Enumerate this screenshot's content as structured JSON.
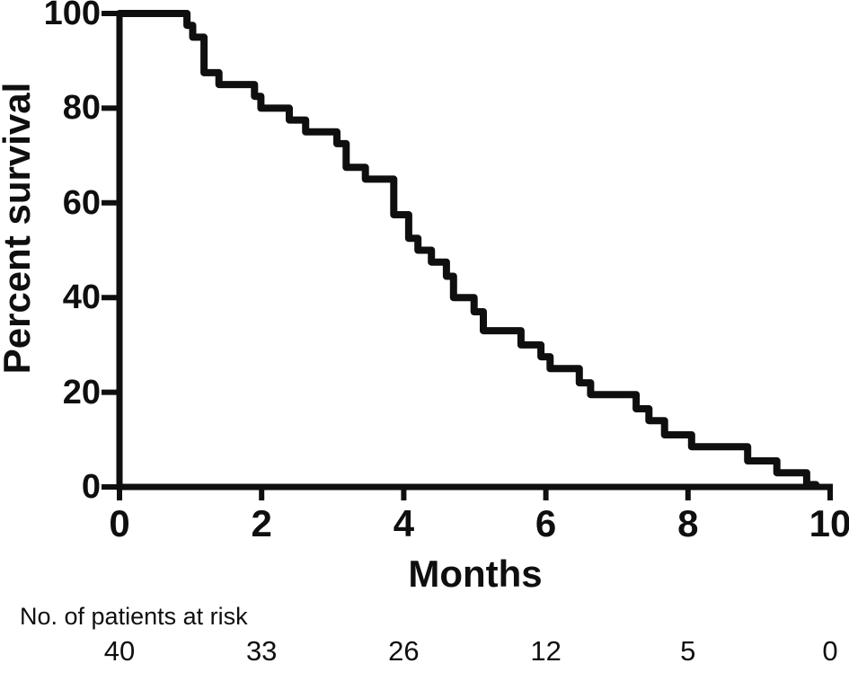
{
  "figure": {
    "background": "#ffffff",
    "ink_color": "#0f0f0f"
  },
  "chart_data": {
    "type": "line",
    "variant": "kaplan_meier_step_curve",
    "title": "",
    "xlabel": "Months",
    "ylabel": "Percent survival",
    "xlim": [
      0,
      10
    ],
    "ylim": [
      0,
      100
    ],
    "x_ticks": [
      0,
      2,
      4,
      6,
      8,
      10
    ],
    "y_ticks": [
      100,
      80,
      60,
      40,
      20,
      0
    ],
    "grid": false,
    "legend": "none",
    "series": [
      {
        "name": "Percent survival",
        "color": "#0f0f0f",
        "step_points": [
          [
            0,
            100
          ],
          [
            0.95,
            97.5
          ],
          [
            1.03,
            95
          ],
          [
            1.19,
            87.5
          ],
          [
            1.4,
            85
          ],
          [
            1.9,
            82.5
          ],
          [
            1.99,
            80
          ],
          [
            2.39,
            77.5
          ],
          [
            2.62,
            75
          ],
          [
            3.06,
            72.5
          ],
          [
            3.19,
            67.5
          ],
          [
            3.46,
            65
          ],
          [
            3.86,
            57.5
          ],
          [
            4.07,
            52.5
          ],
          [
            4.2,
            50
          ],
          [
            4.39,
            47.5
          ],
          [
            4.6,
            44.5
          ],
          [
            4.7,
            40
          ],
          [
            4.99,
            37
          ],
          [
            5.12,
            33
          ],
          [
            5.65,
            30
          ],
          [
            5.93,
            27.5
          ],
          [
            6.06,
            25
          ],
          [
            6.47,
            22
          ],
          [
            6.63,
            19.5
          ],
          [
            7.27,
            16.5
          ],
          [
            7.45,
            14
          ],
          [
            7.67,
            11
          ],
          [
            8.05,
            8.5
          ],
          [
            8.84,
            5.5
          ],
          [
            9.25,
            3
          ],
          [
            9.67,
            0.5
          ]
        ],
        "end_month": 9.8
      }
    ],
    "at_risk_table": {
      "label": "No. of patients at risk",
      "months": [
        0,
        2,
        4,
        6,
        8,
        10
      ],
      "counts": [
        "40",
        "33",
        "26",
        "12",
        "5",
        "0"
      ]
    }
  }
}
